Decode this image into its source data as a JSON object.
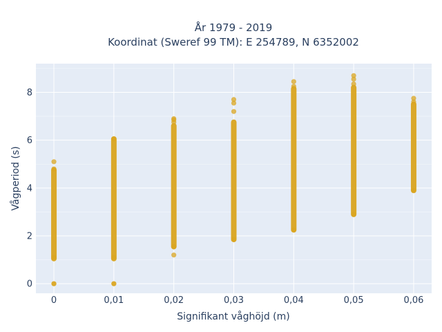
{
  "chart_data": {
    "type": "scatter",
    "title": "År 1979 - 2019",
    "subtitle": "Koordinat (Sweref 99 TM): E 254789, N 6352002",
    "xlabel": "Signifikant våghöjd (m)",
    "ylabel": "Vågperiod (s)",
    "xlim": [
      -0.003,
      0.063
    ],
    "ylim": [
      -0.4,
      9.2
    ],
    "x_ticks": [
      "0",
      "0,01",
      "0,02",
      "0,03",
      "0,04",
      "0,05",
      "0,06"
    ],
    "y_ticks": [
      "0",
      "2",
      "4",
      "6",
      "8"
    ],
    "grid": true,
    "marker_color": "#DAA520",
    "plot_background": "#E5ECF6",
    "columns": [
      {
        "x": 0,
        "range": [
          1.05,
          4.75
        ],
        "points": [
          0.0,
          0.0,
          1.1,
          4.8,
          5.1
        ]
      },
      {
        "x": 0.01,
        "range": [
          1.05,
          6.05
        ],
        "points": [
          0.0,
          0.0,
          1.1,
          6.05
        ]
      },
      {
        "x": 0.02,
        "range": [
          1.55,
          6.6
        ],
        "points": [
          1.2,
          1.55,
          6.75,
          6.85,
          6.9
        ]
      },
      {
        "x": 0.03,
        "range": [
          1.85,
          6.75
        ],
        "points": [
          1.85,
          7.2,
          7.55,
          7.7
        ]
      },
      {
        "x": 0.04,
        "range": [
          2.25,
          8.15
        ],
        "points": [
          2.25,
          8.25,
          8.45
        ]
      },
      {
        "x": 0.05,
        "range": [
          2.9,
          8.2
        ],
        "points": [
          2.9,
          8.35,
          8.55,
          8.7
        ]
      },
      {
        "x": 0.06,
        "range": [
          3.9,
          7.5
        ],
        "points": [
          3.9,
          7.6,
          7.75
        ]
      }
    ]
  }
}
